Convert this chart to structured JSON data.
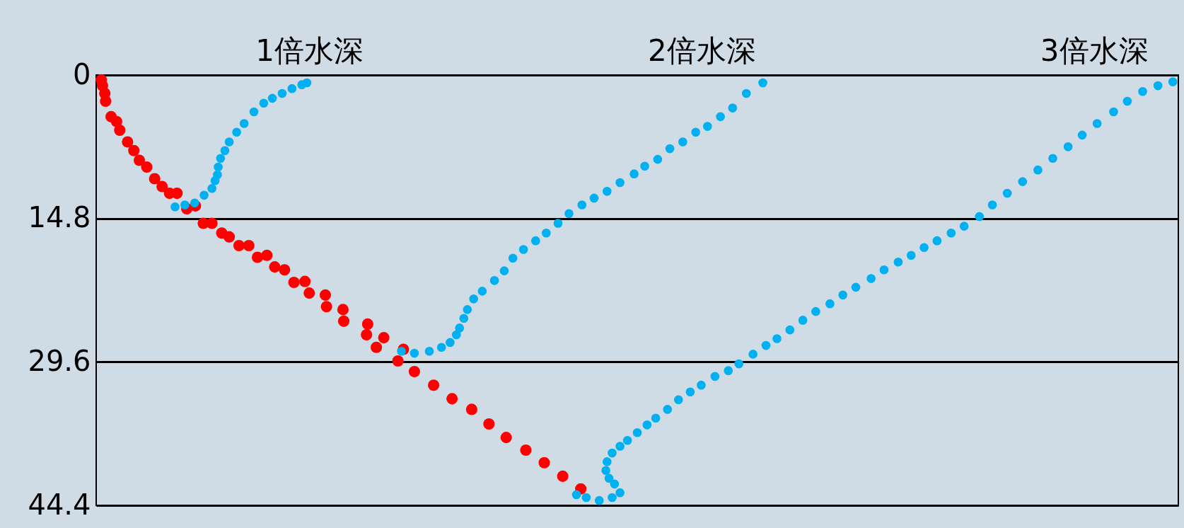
{
  "chart_data": {
    "type": "scatter",
    "marker": "circle",
    "grid": "y",
    "xlim": [
      0.457,
      3.215
    ],
    "xticks": [
      {
        "value": 1,
        "label": "1倍水深"
      },
      {
        "value": 2,
        "label": "2倍水深"
      },
      {
        "value": 3,
        "label": "3倍水深"
      }
    ],
    "ylim": [
      44.4,
      0
    ],
    "yticks": [
      0,
      14.8,
      29.6,
      44.4
    ],
    "series": [
      {
        "color": "#ff0000",
        "x": [
          0.47,
          0.473,
          0.479,
          0.481,
          0.495,
          0.509,
          0.517,
          0.537,
          0.553,
          0.567,
          0.586,
          0.606,
          0.625,
          0.644,
          0.663,
          0.688,
          0.71,
          0.73,
          0.752,
          0.777,
          0.796,
          0.821,
          0.846,
          0.868,
          0.892,
          0.912,
          0.937,
          0.961,
          0.989,
          1.0,
          1.041,
          1.044,
          1.086,
          1.088,
          1.149,
          1.146,
          1.19,
          1.171,
          1.24,
          1.226,
          1.268,
          1.317,
          1.364,
          1.414,
          1.458,
          1.502,
          1.552,
          1.599,
          1.646,
          1.692
        ],
        "values": [
          0.5,
          1.1,
          1.9,
          2.7,
          4.3,
          4.8,
          5.7,
          6.9,
          7.8,
          8.8,
          9.5,
          10.7,
          11.5,
          12.2,
          12.2,
          13.8,
          13.5,
          15.3,
          15.3,
          16.3,
          16.7,
          17.6,
          17.6,
          18.8,
          18.6,
          19.8,
          20.1,
          21.4,
          21.3,
          22.5,
          22.7,
          23.9,
          24.2,
          25.4,
          25.7,
          26.8,
          27.1,
          28.1,
          28.3,
          29.5,
          30.6,
          32.0,
          33.4,
          34.5,
          36.0,
          37.4,
          38.7,
          40.0,
          41.4,
          42.7
        ]
      },
      {
        "color": "#00b0f0",
        "x": [
          0.658,
          0.683,
          0.708,
          0.732,
          0.752,
          0.76,
          0.766,
          0.768,
          0.774,
          0.785,
          0.796,
          0.815,
          0.834,
          0.859,
          0.884,
          0.906,
          0.931,
          0.956,
          0.981,
          0.994
        ],
        "values": [
          13.6,
          13.4,
          13.2,
          12.4,
          11.7,
          10.9,
          10.3,
          9.5,
          8.6,
          7.8,
          6.9,
          5.9,
          5.0,
          3.8,
          2.9,
          2.4,
          1.9,
          1.4,
          1.0,
          0.8
        ]
      },
      {
        "color": "#00b0f0",
        "x": [
          1.235,
          1.268,
          1.306,
          1.337,
          1.359,
          1.375,
          1.383,
          1.394,
          1.403,
          1.419,
          1.441,
          1.472,
          1.497,
          1.519,
          1.546,
          1.577,
          1.604,
          1.634,
          1.662,
          1.695,
          1.726,
          1.759,
          1.792,
          1.828,
          1.855,
          1.888,
          1.919,
          1.952,
          1.985,
          2.015,
          2.048,
          2.079,
          2.114,
          2.156
        ],
        "values": [
          28.5,
          28.7,
          28.5,
          28.1,
          27.6,
          26.8,
          26.1,
          25.1,
          24.2,
          23.1,
          22.3,
          21.2,
          20.2,
          18.9,
          18.0,
          17.1,
          16.3,
          15.3,
          14.3,
          13.4,
          12.7,
          12.0,
          11.1,
          10.2,
          9.4,
          8.7,
          7.6,
          6.9,
          5.9,
          5.3,
          4.3,
          3.4,
          1.9,
          0.8
        ]
      },
      {
        "color": "#00b0f0",
        "x": [
          1.681,
          1.706,
          1.739,
          1.772,
          1.792,
          1.778,
          1.764,
          1.756,
          1.759,
          1.772,
          1.792,
          1.811,
          1.836,
          1.861,
          1.883,
          1.913,
          1.941,
          1.971,
          1.999,
          2.034,
          2.068,
          2.095,
          2.131,
          2.164,
          2.192,
          2.225,
          2.258,
          2.291,
          2.327,
          2.36,
          2.393,
          2.432,
          2.465,
          2.501,
          2.534,
          2.567,
          2.6,
          2.636,
          2.669,
          2.708,
          2.741,
          2.779,
          2.818,
          2.857,
          2.895,
          2.934,
          2.97,
          3.008,
          3.05,
          3.085,
          3.124,
          3.163,
          3.201
        ],
        "values": [
          43.3,
          43.6,
          43.9,
          43.6,
          43.1,
          42.2,
          41.6,
          40.8,
          39.9,
          39.0,
          38.3,
          37.7,
          36.9,
          36.1,
          35.4,
          34.5,
          33.5,
          32.7,
          32.0,
          31.1,
          30.5,
          29.8,
          28.8,
          27.9,
          27.2,
          26.3,
          25.3,
          24.4,
          23.6,
          22.7,
          21.9,
          21.0,
          20.1,
          19.3,
          18.6,
          17.8,
          17.1,
          16.3,
          15.6,
          14.6,
          13.4,
          12.2,
          11.0,
          9.8,
          8.6,
          7.4,
          6.2,
          5.0,
          3.8,
          2.7,
          1.7,
          1.1,
          0.7
        ]
      }
    ]
  }
}
